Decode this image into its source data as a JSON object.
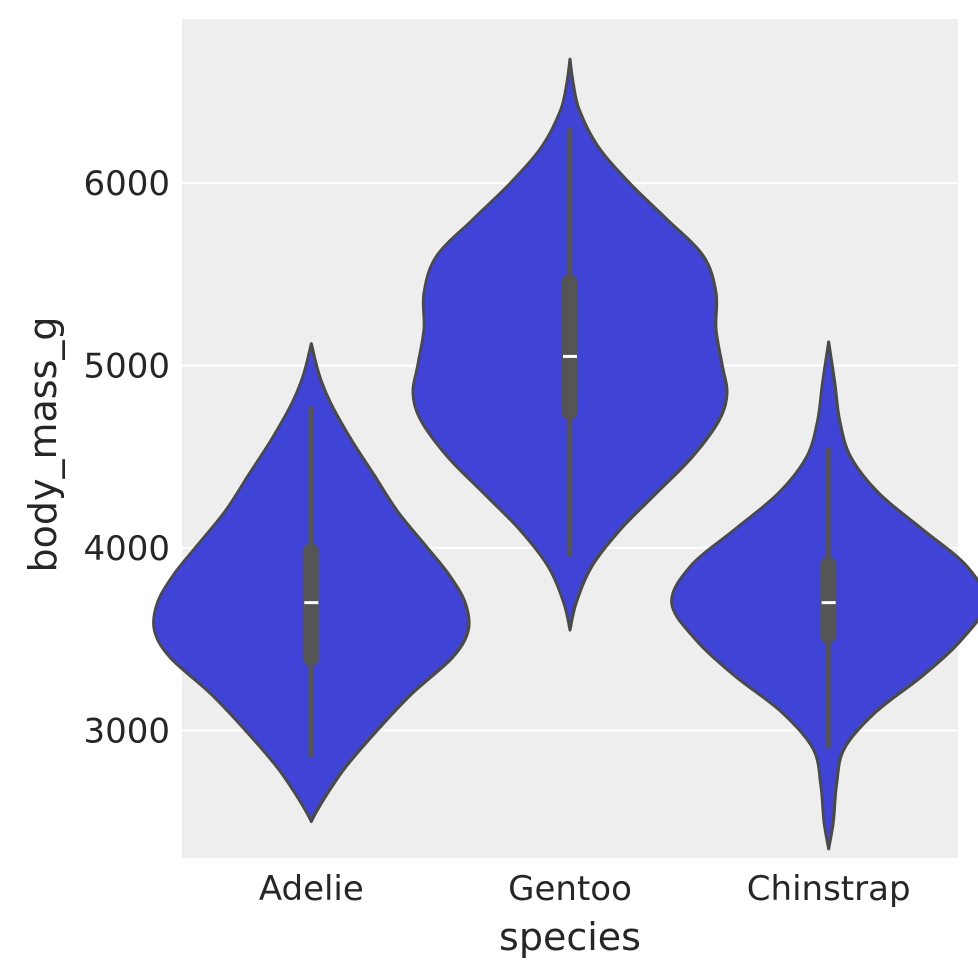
{
  "chart_data": {
    "type": "violin",
    "title": "",
    "xlabel": "species",
    "ylabel": "body_mass_g",
    "categories": [
      "Adelie",
      "Gentoo",
      "Chinstrap"
    ],
    "ylim": [
      2300,
      6900
    ],
    "yticks": [
      3000,
      4000,
      5000,
      6000
    ],
    "grid": true,
    "colors": {
      "fill": "#4044d6",
      "edge": "#4a4a4a",
      "background": "#eeeeee",
      "grid": "#ffffff",
      "box": "#555555",
      "median": "#ffffff"
    },
    "violins": [
      {
        "category": "Adelie",
        "min_extent": 2500,
        "max_extent": 5120,
        "whisker_low": 2850,
        "whisker_high": 4775,
        "q1": 3350,
        "median": 3700,
        "q3": 4025,
        "density": [
          [
            2500,
            0.0
          ],
          [
            2550,
            0.03
          ],
          [
            2650,
            0.1
          ],
          [
            2800,
            0.22
          ],
          [
            3000,
            0.42
          ],
          [
            3200,
            0.64
          ],
          [
            3400,
            0.9
          ],
          [
            3550,
            1.0
          ],
          [
            3700,
            0.98
          ],
          [
            3850,
            0.88
          ],
          [
            4000,
            0.74
          ],
          [
            4200,
            0.55
          ],
          [
            4400,
            0.4
          ],
          [
            4600,
            0.25
          ],
          [
            4800,
            0.12
          ],
          [
            4950,
            0.05
          ],
          [
            5120,
            0.0
          ]
        ]
      },
      {
        "category": "Gentoo",
        "min_extent": 3550,
        "max_extent": 6680,
        "whisker_low": 3950,
        "whisker_high": 6300,
        "q1": 4700,
        "median": 5050,
        "q3": 5500,
        "density": [
          [
            3550,
            0.0
          ],
          [
            3700,
            0.04
          ],
          [
            3900,
            0.14
          ],
          [
            4100,
            0.32
          ],
          [
            4300,
            0.55
          ],
          [
            4500,
            0.78
          ],
          [
            4700,
            0.95
          ],
          [
            4850,
            1.0
          ],
          [
            5000,
            0.97
          ],
          [
            5200,
            0.93
          ],
          [
            5400,
            0.93
          ],
          [
            5600,
            0.85
          ],
          [
            5800,
            0.62
          ],
          [
            6000,
            0.38
          ],
          [
            6200,
            0.18
          ],
          [
            6400,
            0.06
          ],
          [
            6550,
            0.02
          ],
          [
            6680,
            0.0
          ]
        ]
      },
      {
        "category": "Chinstrap",
        "min_extent": 2350,
        "max_extent": 5130,
        "whisker_low": 2900,
        "whisker_high": 4550,
        "q1": 3475,
        "median": 3700,
        "q3": 3950,
        "density": [
          [
            2350,
            0.0
          ],
          [
            2500,
            0.03
          ],
          [
            2700,
            0.05
          ],
          [
            2900,
            0.1
          ],
          [
            3100,
            0.3
          ],
          [
            3300,
            0.6
          ],
          [
            3500,
            0.85
          ],
          [
            3700,
            1.0
          ],
          [
            3900,
            0.88
          ],
          [
            4100,
            0.6
          ],
          [
            4300,
            0.32
          ],
          [
            4500,
            0.14
          ],
          [
            4700,
            0.07
          ],
          [
            4900,
            0.04
          ],
          [
            5130,
            0.0
          ]
        ]
      }
    ]
  }
}
